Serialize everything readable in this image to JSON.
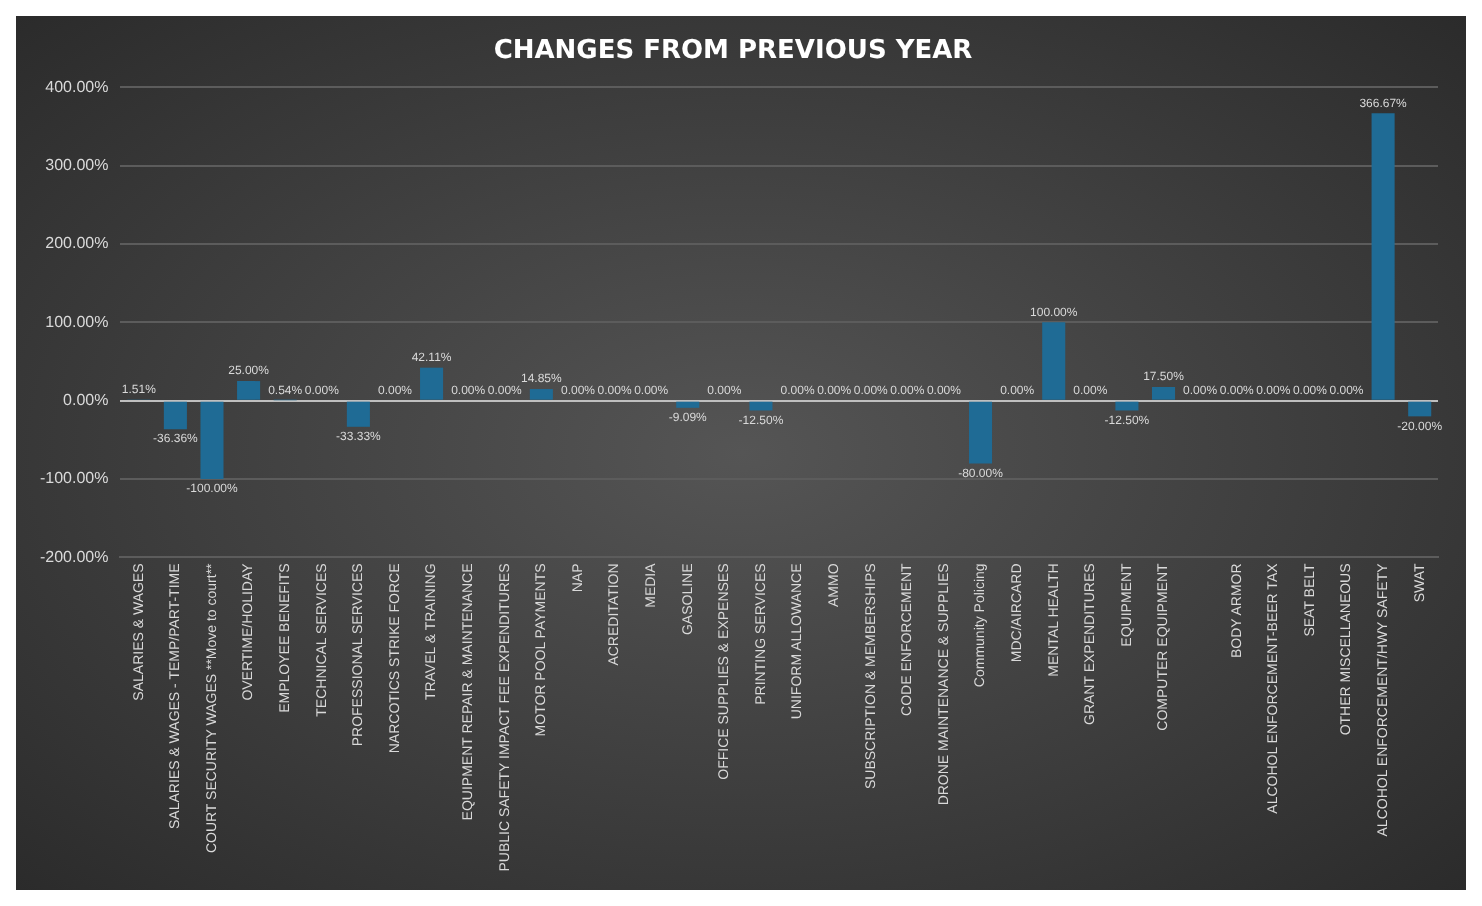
{
  "chart_data": {
    "type": "bar",
    "title": "CHANGES FROM PREVIOUS YEAR",
    "categories": [
      "SALARIES & WAGES",
      "SALARIES & WAGES - TEMP/PART-TIME",
      "COURT SECURITY WAGES **Move to court**",
      "OVERTIME/HOLIDAY",
      "EMPLOYEE BENEFITS",
      "TECHNICAL SERVICES",
      "PROFESSIONAL SERVICES",
      "NARCOTICS STRIKE FORCE",
      "TRAVEL & TRAINING",
      "EQUIPMENT REPAIR & MAINTENANCE",
      "PUBLIC SAFETY IMPACT FEE EXPENDITURES",
      "MOTOR POOL PAYMENTS",
      "NAP",
      "ACREDITATION",
      "MEDIA",
      "GASOLINE",
      "OFFICE SUPPLIES & EXPENSES",
      "PRINTING SERVICES",
      "UNIFORM ALLOWANCE",
      "AMMO",
      "SUBSCRIPTION & MEMBERSHIPS",
      "CODE ENFORCEMENT",
      "DRONE MAINTENANCE & SUPPLIES",
      "Community Policing",
      "MDC/AIRCARD",
      "MENTAL HEALTH",
      "GRANT EXPENDITURES",
      "EQUIPMENT",
      "COMPUTER EQUIPMENT",
      null,
      "BODY ARMOR",
      "ALCOHOL ENFORCEMENT-BEER TAX",
      "SEAT BELT",
      "OTHER MISCELLANEOUS",
      "ALCOHOL ENFORCEMENT/HWY SAFETY",
      "SWAT"
    ],
    "values": [
      1.51,
      -36.36,
      -100,
      25,
      0.54,
      0,
      -33.33,
      0,
      42.11,
      0,
      0,
      14.85,
      0,
      0,
      0,
      -9.09,
      0,
      -12.5,
      0,
      0,
      0,
      0,
      0,
      -80,
      0,
      100,
      0,
      -12.5,
      17.5,
      0,
      0,
      0,
      0,
      0,
      366.67,
      -20
    ],
    "value_labels": [
      "1.51%",
      "-36.36%",
      "-100.00%",
      "25.00%",
      "0.54%",
      "0.00%",
      "-33.33%",
      "0.00%",
      "42.11%",
      "0.00%",
      "0.00%",
      "14.85%",
      "0.00%",
      "0.00%",
      "0.00%",
      "-9.09%",
      "0.00%",
      "-12.50%",
      "0.00%",
      "0.00%",
      "0.00%",
      "0.00%",
      "0.00%",
      "-80.00%",
      "0.00%",
      "100.00%",
      "0.00%",
      "-12.50%",
      "17.50%",
      "0.00%",
      "0.00%",
      "0.00%",
      "0.00%",
      "0.00%",
      "366.67%",
      "-20.00%"
    ],
    "color": "#1f6b95",
    "ylim": [
      -200,
      400
    ],
    "yticks": [
      {
        "value": -200,
        "label": "-200.00%"
      },
      {
        "value": -100,
        "label": "-100.00%"
      },
      {
        "value": 0,
        "label": "0.00%"
      },
      {
        "value": 100,
        "label": "100.00%"
      },
      {
        "value": 200,
        "label": "200.00%"
      },
      {
        "value": 300,
        "label": "300.00%"
      },
      {
        "value": 400,
        "label": "400.00%"
      }
    ],
    "grid": "y",
    "legend": false
  }
}
